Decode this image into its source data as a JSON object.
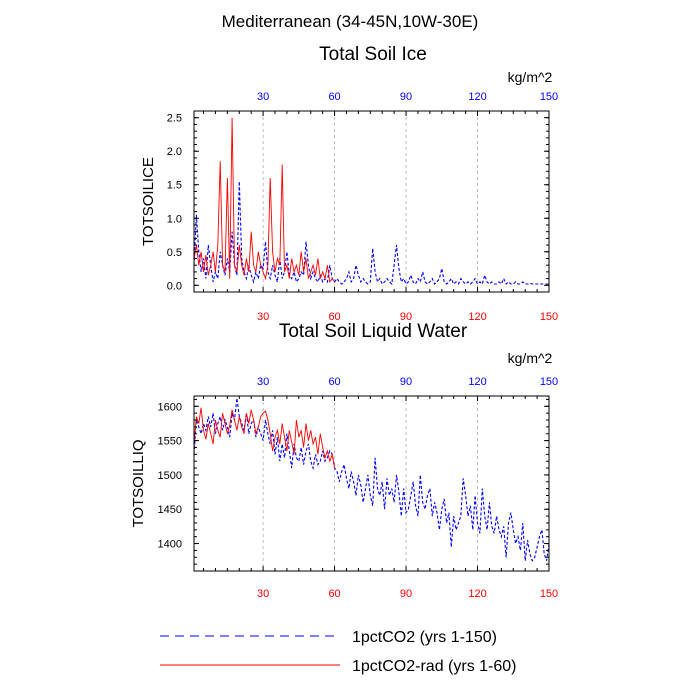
{
  "figure": {
    "region_title": "Mediterranean (34-45N,10W-30E)",
    "units": "kg/m^2"
  },
  "legend": {
    "position": "bottom",
    "entries": [
      {
        "label": "1pctCO2 (yrs 1-150)",
        "color": "#0000ff",
        "style": "dashed"
      },
      {
        "label": "1pctCO2-rad (yrs 1-60)",
        "color": "#ff0000",
        "style": "solid"
      }
    ]
  },
  "colors": {
    "series_a": "#0000ff",
    "series_b": "#ff0000",
    "grid": "#aaaaaa",
    "axis": "#000000"
  },
  "chart_data": [
    {
      "type": "line",
      "title": "Total Soil Ice",
      "ylabel": "TOTSOILICE",
      "units_label": "kg/m^2",
      "xlim": [
        1,
        150
      ],
      "ylim": [
        -0.1,
        2.6
      ],
      "x_ticks": [
        30,
        60,
        90,
        120,
        150
      ],
      "y_ticks": [
        0.0,
        0.5,
        1.0,
        1.5,
        2.0,
        2.5
      ],
      "y_tick_labels": [
        "0.0",
        "0.5",
        "1.0",
        "1.5",
        "2.0",
        "2.5"
      ],
      "grid_x": true,
      "series": [
        {
          "color": "#0000ff",
          "dashed": true,
          "values": [
            0.3,
            1.05,
            0.5,
            0.2,
            0.4,
            0.1,
            0.6,
            0.3,
            0.05,
            0.2,
            0.1,
            0.5,
            0.3,
            0.15,
            0.4,
            0.2,
            0.8,
            0.3,
            0.15,
            1.55,
            0.4,
            0.2,
            0.1,
            0.3,
            0.15,
            0.05,
            0.2,
            0.1,
            0.3,
            0.25,
            0.65,
            0.2,
            0.1,
            0.3,
            0.15,
            0.05,
            0.4,
            0.1,
            0.2,
            0.5,
            0.15,
            0.1,
            0.2,
            0.05,
            0.1,
            0.2,
            0.15,
            0.65,
            0.3,
            0.1,
            0.2,
            0.1,
            0.05,
            0.15,
            0.05,
            0.1,
            0.05,
            0.3,
            0.1,
            0.05,
            0.1,
            0.05,
            0.02,
            0.05,
            0.1,
            0.2,
            0.05,
            0.1,
            0.3,
            0.15,
            0.05,
            0.1,
            0.05,
            0.02,
            0.05,
            0.55,
            0.2,
            0.05,
            0.1,
            0.02,
            0.05,
            0.1,
            0.05,
            0.02,
            0.3,
            0.6,
            0.25,
            0.05,
            0.1,
            0.02,
            0.05,
            0.15,
            0.05,
            0.02,
            0.1,
            0.05,
            0.2,
            0.05,
            0.02,
            0.05,
            0.1,
            0.02,
            0.05,
            0.1,
            0.25,
            0.05,
            0.02,
            0.05,
            0.1,
            0.02,
            0.05,
            0.02,
            0.1,
            0.05,
            0.02,
            0.05,
            0.02,
            0.05,
            0.1,
            0.02,
            0.05,
            0.02,
            0.15,
            0.05,
            0.02,
            0.05,
            0.02,
            0.02,
            0.05,
            0.02,
            0.1,
            0.02,
            0.05,
            0.02,
            0.02,
            0.05,
            0.02,
            0.02,
            0.05,
            0.02,
            0.02,
            0.03,
            0.02,
            0.02,
            0.02,
            0.02,
            0.02,
            0.02,
            0.02,
            0.02
          ]
        },
        {
          "color": "#ff0000",
          "dashed": false,
          "values": [
            0.4,
            0.6,
            0.3,
            0.5,
            0.2,
            0.45,
            0.15,
            0.3,
            0.5,
            0.2,
            0.6,
            1.85,
            0.3,
            0.2,
            1.6,
            0.1,
            2.5,
            0.3,
            0.2,
            0.6,
            0.3,
            0.15,
            0.4,
            0.2,
            0.8,
            0.3,
            0.2,
            0.5,
            0.3,
            0.2,
            0.1,
            0.3,
            1.6,
            0.5,
            0.2,
            0.4,
            0.3,
            1.8,
            0.2,
            0.3,
            0.1,
            0.4,
            0.2,
            0.3,
            0.15,
            0.5,
            0.2,
            0.4,
            0.1,
            0.2,
            0.3,
            0.15,
            0.4,
            0.1,
            0.2,
            0.1,
            0.3,
            0.05,
            0.1,
            0.05
          ]
        }
      ]
    },
    {
      "type": "line",
      "title": "Total Soil Liquid Water",
      "ylabel": "TOTSOILLIQ",
      "units_label": "kg/m^2",
      "xlim": [
        1,
        150
      ],
      "ylim": [
        1360,
        1615
      ],
      "x_ticks": [
        30,
        60,
        90,
        120,
        150
      ],
      "y_ticks": [
        1400,
        1450,
        1500,
        1550,
        1600
      ],
      "y_tick_labels": [
        "1400",
        "1450",
        "1500",
        "1550",
        "1600"
      ],
      "grid_x": true,
      "series": [
        {
          "color": "#0000ff",
          "dashed": true,
          "values": [
            1530,
            1580,
            1570,
            1560,
            1575,
            1565,
            1585,
            1570,
            1590,
            1560,
            1575,
            1585,
            1565,
            1580,
            1570,
            1555,
            1590,
            1580,
            1612,
            1585,
            1575,
            1565,
            1590,
            1560,
            1575,
            1580,
            1555,
            1570,
            1560,
            1550,
            1580,
            1560,
            1545,
            1565,
            1530,
            1555,
            1520,
            1545,
            1525,
            1560,
            1535,
            1510,
            1545,
            1525,
            1520,
            1540,
            1515,
            1535,
            1545,
            1520,
            1510,
            1530,
            1515,
            1520,
            1535,
            1520,
            1525,
            1535,
            1530,
            1510,
            1505,
            1490,
            1505,
            1515,
            1495,
            1480,
            1505,
            1490,
            1470,
            1500,
            1485,
            1460,
            1480,
            1500,
            1470,
            1455,
            1525,
            1480,
            1470,
            1490,
            1450,
            1495,
            1470,
            1480,
            1460,
            1500,
            1475,
            1440,
            1480,
            1445,
            1450,
            1470,
            1490,
            1455,
            1440,
            1500,
            1460,
            1450,
            1470,
            1480,
            1440,
            1460,
            1445,
            1420,
            1450,
            1465,
            1430,
            1445,
            1395,
            1440,
            1420,
            1430,
            1440,
            1495,
            1470,
            1440,
            1455,
            1420,
            1470,
            1430,
            1415,
            1480,
            1440,
            1420,
            1460,
            1425,
            1415,
            1440,
            1420,
            1410,
            1425,
            1380,
            1430,
            1445,
            1420,
            1400,
            1410,
            1390,
            1430,
            1375,
            1405,
            1385,
            1375,
            1380,
            1395,
            1410,
            1420,
            1385,
            1375,
            1400
          ]
        },
        {
          "color": "#ff0000",
          "dashed": false,
          "values": [
            1545,
            1585,
            1575,
            1598,
            1565,
            1552,
            1575,
            1560,
            1545,
            1580,
            1565,
            1555,
            1590,
            1575,
            1560,
            1572,
            1595,
            1580,
            1565,
            1585,
            1570,
            1560,
            1590,
            1575,
            1595,
            1580,
            1560,
            1570,
            1585,
            1590,
            1593,
            1580,
            1560,
            1535,
            1555,
            1565,
            1545,
            1575,
            1555,
            1535,
            1565,
            1548,
            1530,
            1580,
            1555,
            1565,
            1540,
            1575,
            1550,
            1565,
            1545,
            1555,
            1530,
            1560,
            1540,
            1525,
            1535,
            1520,
            1530,
            1510
          ]
        }
      ]
    }
  ]
}
